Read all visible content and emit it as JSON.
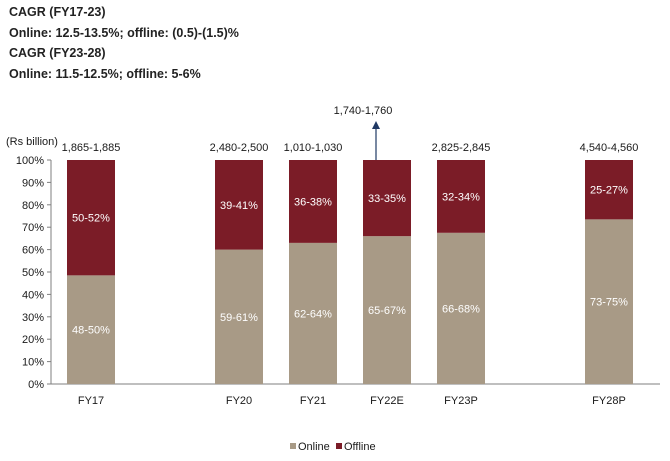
{
  "cagr": [
    {
      "heading": "CAGR (FY17-23)",
      "detail": "Online: 12.5-13.5%; offline: (0.5)-(1.5)%"
    },
    {
      "heading": "CAGR (FY23-28)",
      "detail": "Online: 11.5-12.5%; offline: 5-6%"
    }
  ],
  "chart_data": {
    "type": "bar",
    "stacked": true,
    "percent": true,
    "ylabel": "(Rs billion)",
    "ylim": [
      0,
      100
    ],
    "yticks": [
      "0%",
      "10%",
      "20%",
      "30%",
      "40%",
      "50%",
      "60%",
      "70%",
      "80%",
      "90%",
      "100%"
    ],
    "categories": [
      "FY17",
      "FY20",
      "FY21",
      "FY22E",
      "FY23P",
      "FY28P"
    ],
    "totals": [
      "1,865-1,885",
      "2,480-2,500",
      "1,010-1,030",
      "1,740-1,760",
      "2,825-2,845",
      "4,540-4,560"
    ],
    "series": [
      {
        "name": "Online",
        "color": "#a89a86",
        "values": [
          48.5,
          60,
          63,
          66,
          67.5,
          73.5
        ],
        "labels": [
          "48-50%",
          "59-61%",
          "62-64%",
          "65-67%",
          "66-68%",
          "73-75%"
        ]
      },
      {
        "name": "Offline",
        "color": "#7b1c27",
        "values": [
          51.5,
          40,
          37,
          34,
          32.5,
          26.5
        ],
        "labels": [
          "50-52%",
          "39-41%",
          "36-38%",
          "33-35%",
          "32-34%",
          "25-27%"
        ]
      }
    ],
    "legend": [
      "Online",
      "Offline"
    ],
    "legend_position": "bottom"
  }
}
